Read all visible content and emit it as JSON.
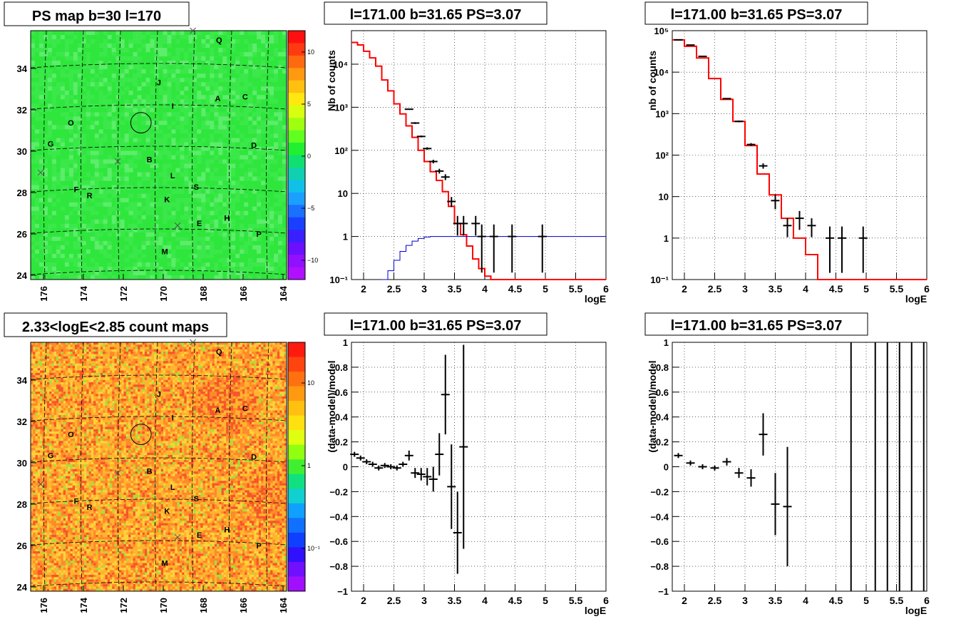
{
  "colors": {
    "frame": "#000000",
    "red": "#ff0000",
    "blue": "#0000cc",
    "grid": "#000000",
    "bg": "#ffffff"
  },
  "panels": [
    {
      "id": "ps-map",
      "title": "PS map b=30 l=170",
      "type": "heatmap",
      "palette": "green",
      "xticks": [
        "176",
        "174",
        "172",
        "170",
        "168",
        "166",
        "164"
      ],
      "yticks": [
        "24",
        "26",
        "28",
        "30",
        "32",
        "34"
      ],
      "zticks": [
        "10",
        "5",
        "0",
        "−5",
        "−10"
      ],
      "sources": [
        [
          "Q",
          0.736,
          0.02
        ],
        [
          "J",
          0.501,
          0.19
        ],
        [
          "A",
          0.731,
          0.255
        ],
        [
          "C",
          0.838,
          0.248
        ],
        [
          "I",
          0.555,
          0.285
        ],
        [
          "O",
          0.157,
          0.353
        ],
        [
          "G",
          0.078,
          0.437
        ],
        [
          "D",
          0.872,
          0.443
        ],
        [
          "B",
          0.464,
          0.5
        ],
        [
          "L",
          0.555,
          0.565
        ],
        [
          "F",
          0.178,
          0.62
        ],
        [
          "S",
          0.647,
          0.61
        ],
        [
          "R",
          0.23,
          0.645
        ],
        [
          "K",
          0.533,
          0.66
        ],
        [
          "H",
          0.767,
          0.735
        ],
        [
          "E",
          0.659,
          0.757
        ],
        [
          "P",
          0.892,
          0.8
        ],
        [
          "M",
          0.524,
          0.87
        ]
      ],
      "crosses": [
        [
          0.634,
          0.0
        ],
        [
          0.039,
          0.57
        ],
        [
          0.34,
          0.525
        ],
        [
          0.574,
          0.783
        ]
      ],
      "circle": [
        0.431,
        0.37,
        0.04
      ]
    },
    {
      "id": "count-map",
      "title": "2.33<logE<2.85 count maps",
      "type": "heatmap",
      "palette": "heat",
      "xticks": [
        "176",
        "174",
        "172",
        "170",
        "168",
        "166",
        "164"
      ],
      "yticks": [
        "24",
        "26",
        "28",
        "30",
        "32",
        "34"
      ],
      "zticks": [
        "10",
        "1",
        "10⁻¹"
      ],
      "sources": [
        [
          "Q",
          0.736,
          0.02
        ],
        [
          "J",
          0.501,
          0.19
        ],
        [
          "A",
          0.731,
          0.255
        ],
        [
          "C",
          0.838,
          0.248
        ],
        [
          "I",
          0.555,
          0.285
        ],
        [
          "O",
          0.157,
          0.353
        ],
        [
          "G",
          0.078,
          0.437
        ],
        [
          "D",
          0.872,
          0.443
        ],
        [
          "B",
          0.464,
          0.5
        ],
        [
          "L",
          0.555,
          0.565
        ],
        [
          "F",
          0.178,
          0.62
        ],
        [
          "S",
          0.647,
          0.61
        ],
        [
          "R",
          0.23,
          0.645
        ],
        [
          "K",
          0.533,
          0.66
        ],
        [
          "H",
          0.767,
          0.735
        ],
        [
          "E",
          0.659,
          0.757
        ],
        [
          "P",
          0.892,
          0.8
        ],
        [
          "M",
          0.524,
          0.87
        ]
      ],
      "crosses": [
        [
          0.634,
          0.0
        ],
        [
          0.039,
          0.57
        ],
        [
          0.34,
          0.525
        ],
        [
          0.574,
          0.783
        ]
      ],
      "circle": [
        0.431,
        0.37,
        0.04
      ]
    }
  ],
  "chart_data": [
    {
      "type": "line",
      "title": "l=171.00 b=31.65 PS=3.07",
      "xlabel": "logE",
      "ylabel": "Nb of counts",
      "log_y": true,
      "xlim": [
        1.8,
        6
      ],
      "ylim": [
        0.1,
        60000
      ],
      "xticks": [
        "2",
        "2.5",
        "3",
        "3.5",
        "4",
        "4.5",
        "5",
        "5.5",
        "6"
      ],
      "yticks": [
        "10⁻¹",
        "1",
        "10",
        "10²",
        "10³",
        "10⁴"
      ],
      "series": [
        {
          "values": [
            [
              1.8,
              32000
            ],
            [
              1.9,
              28000
            ],
            [
              2.0,
              20000
            ],
            [
              2.1,
              14000
            ],
            [
              2.2,
              9000
            ],
            [
              2.3,
              4300
            ],
            [
              2.4,
              2400
            ],
            [
              2.5,
              1200
            ],
            [
              2.6,
              700
            ],
            [
              2.7,
              370
            ],
            [
              2.8,
              200
            ],
            [
              2.9,
              100
            ],
            [
              3.0,
              55
            ],
            [
              3.1,
              32
            ],
            [
              3.2,
              20
            ],
            [
              3.3,
              11
            ],
            [
              3.4,
              5
            ],
            [
              3.5,
              2
            ],
            [
              3.6,
              1.1
            ],
            [
              3.7,
              0.6
            ],
            [
              3.8,
              0.3
            ],
            [
              3.9,
              0.18
            ],
            [
              4.0,
              0.12
            ],
            [
              4.1,
              0.1
            ],
            [
              4.2,
              0.1
            ],
            [
              6.0,
              0.1
            ]
          ]
        },
        {
          "values": [
            [
              2.3,
              0.1
            ],
            [
              2.4,
              0.16
            ],
            [
              2.5,
              0.28
            ],
            [
              2.6,
              0.45
            ],
            [
              2.7,
              0.62
            ],
            [
              2.8,
              0.78
            ],
            [
              2.9,
              0.9
            ],
            [
              3.0,
              0.97
            ],
            [
              3.1,
              1.0
            ],
            [
              6.0,
              1.0
            ]
          ]
        },
        {
          "points": [
            [
              2.75,
              900,
              0.02
            ],
            [
              2.85,
              430,
              0.05
            ],
            [
              2.95,
              210,
              0.05
            ],
            [
              3.05,
              110,
              0.07
            ],
            [
              3.15,
              55,
              0.1
            ],
            [
              3.25,
              33,
              0.13
            ],
            [
              3.35,
              24,
              0.16
            ],
            [
              3.45,
              6.5,
              0.27
            ],
            [
              3.55,
              2,
              0.5
            ],
            [
              3.65,
              2,
              0.5
            ],
            [
              3.85,
              2,
              0.5
            ],
            [
              3.95,
              1,
              0.9
            ],
            [
              4.15,
              1,
              0.9
            ],
            [
              4.45,
              1,
              0.9
            ],
            [
              4.95,
              1,
              0.9
            ]
          ]
        }
      ]
    },
    {
      "type": "line",
      "title": "l=171.00 b=31.65 PS=3.07",
      "xlabel": "logE",
      "ylabel": "nb of counts",
      "log_y": true,
      "xlim": [
        1.8,
        6
      ],
      "ylim": [
        0.1,
        100000
      ],
      "xticks": [
        "2",
        "2.5",
        "3",
        "3.5",
        "4",
        "4.5",
        "5",
        "5.5",
        "6"
      ],
      "yticks": [
        "10⁻¹",
        "1",
        "10",
        "10²",
        "10³",
        "10⁴",
        "10⁵"
      ],
      "series": [
        {
          "values": [
            [
              1.8,
              60000
            ],
            [
              2.0,
              42000
            ],
            [
              2.2,
              22000
            ],
            [
              2.4,
              7000
            ],
            [
              2.6,
              2200
            ],
            [
              2.8,
              650
            ],
            [
              3.0,
              170
            ],
            [
              3.2,
              35
            ],
            [
              3.4,
              11
            ],
            [
              3.6,
              3
            ],
            [
              3.8,
              1
            ],
            [
              4.0,
              0.4
            ],
            [
              4.2,
              0.1
            ],
            [
              6.0,
              0.1
            ]
          ]
        },
        {
          "points": [
            [
              1.9,
              60000,
              0.02
            ],
            [
              2.1,
              45000,
              0.02
            ],
            [
              2.3,
              24000,
              0.02
            ],
            [
              2.7,
              2300,
              0.03
            ],
            [
              2.9,
              650,
              0.05
            ],
            [
              3.1,
              180,
              0.08
            ],
            [
              3.3,
              55,
              0.15
            ],
            [
              3.5,
              8,
              0.4
            ],
            [
              3.7,
              2,
              0.5
            ],
            [
              3.9,
              3,
              0.5
            ],
            [
              4.1,
              2,
              0.5
            ],
            [
              4.4,
              1,
              0.9
            ],
            [
              4.6,
              1,
              0.9
            ],
            [
              4.95,
              1,
              0.9
            ]
          ]
        }
      ]
    },
    {
      "type": "scatter",
      "title": "l=171.00 b=31.65 PS=3.07",
      "xlabel": "logE",
      "ylabel": "(data-model)/model",
      "xlim": [
        1.8,
        6
      ],
      "ylim": [
        -1,
        1
      ],
      "xticks": [
        "2",
        "2.5",
        "3",
        "3.5",
        "4",
        "4.5",
        "5",
        "5.5",
        "6"
      ],
      "yticks": [
        "−1",
        "−0.8",
        "−0.6",
        "−0.4",
        "−0.2",
        "0",
        "0.2",
        "0.4",
        "0.6",
        "0.8",
        "1"
      ],
      "points": [
        [
          1.85,
          0.1,
          0.02
        ],
        [
          1.95,
          0.07,
          0.02
        ],
        [
          2.05,
          0.04,
          0.02
        ],
        [
          2.15,
          0.02,
          0.02
        ],
        [
          2.25,
          -0.01,
          0.02
        ],
        [
          2.35,
          0.01,
          0.02
        ],
        [
          2.45,
          0.0,
          0.02
        ],
        [
          2.55,
          -0.01,
          0.02
        ],
        [
          2.65,
          0.02,
          0.02
        ],
        [
          2.75,
          0.09,
          0.04
        ],
        [
          2.85,
          -0.05,
          0.04
        ],
        [
          2.95,
          -0.06,
          0.05
        ],
        [
          3.05,
          -0.08,
          0.07
        ],
        [
          3.15,
          -0.1,
          0.1
        ],
        [
          3.25,
          0.1,
          0.17
        ],
        [
          3.35,
          0.58,
          0.32
        ],
        [
          3.45,
          -0.16,
          0.34
        ],
        [
          3.55,
          -0.53,
          0.33
        ],
        [
          3.65,
          0.16,
          0.82
        ]
      ]
    },
    {
      "type": "scatter",
      "title": "l=171.00 b=31.65 PS=3.07",
      "xlabel": "logE",
      "ylabel": "(data-model)/model",
      "xlim": [
        1.8,
        6
      ],
      "ylim": [
        -1,
        1
      ],
      "xticks": [
        "2",
        "2.5",
        "3",
        "3.5",
        "4",
        "4.5",
        "5",
        "5.5",
        "6"
      ],
      "yticks": [
        "−1",
        "−0.8",
        "−0.6",
        "−0.4",
        "−0.2",
        "0",
        "0.2",
        "0.4",
        "0.6",
        "0.8",
        "1"
      ],
      "points": [
        [
          1.9,
          0.09,
          0.02
        ],
        [
          2.1,
          0.03,
          0.02
        ],
        [
          2.3,
          0.0,
          0.02
        ],
        [
          2.5,
          -0.01,
          0.02
        ],
        [
          2.7,
          0.04,
          0.03
        ],
        [
          2.9,
          -0.05,
          0.04
        ],
        [
          3.1,
          -0.09,
          0.07
        ],
        [
          3.3,
          0.26,
          0.17
        ],
        [
          3.5,
          -0.3,
          0.25
        ],
        [
          3.7,
          -0.32,
          0.48
        ]
      ],
      "vlines": [
        4.75,
        5.15,
        5.35,
        5.55,
        5.75,
        5.95
      ]
    }
  ]
}
